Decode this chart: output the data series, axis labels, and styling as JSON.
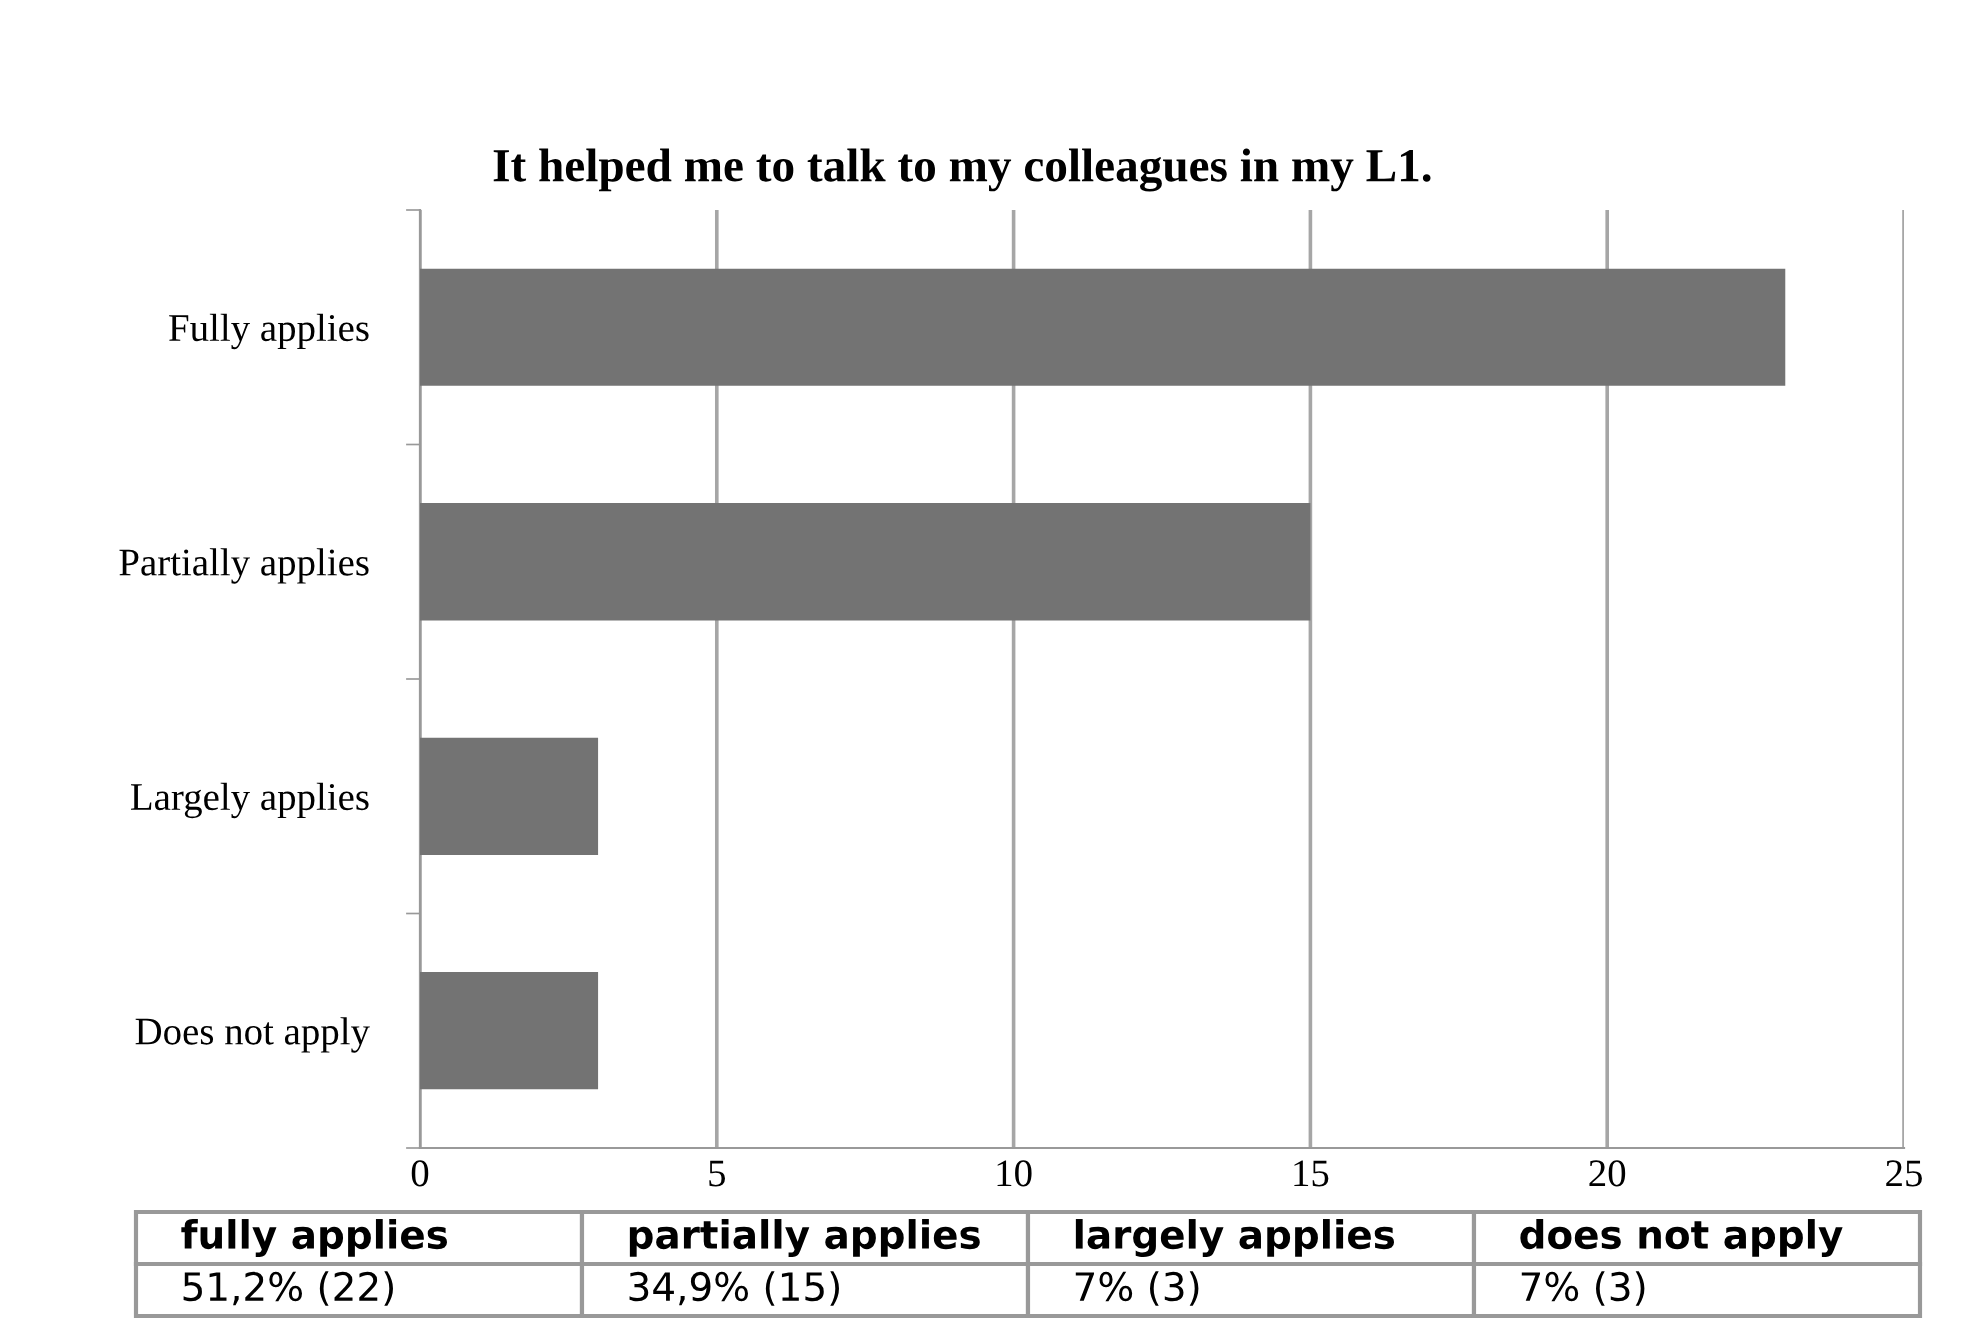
{
  "chart_data": {
    "type": "bar",
    "orientation": "horizontal",
    "title": "It helped me to talk to my colleagues in my L1.",
    "categories": [
      "Fully applies",
      "Partially applies",
      "Largely applies",
      "Does not apply"
    ],
    "values": [
      23,
      15,
      3,
      3
    ],
    "color": "#737373",
    "xlim": [
      0,
      25
    ],
    "xticks": [
      0,
      5,
      10,
      15,
      20,
      25
    ],
    "grid": "x",
    "annotations": [
      "fully applies",
      "partially applies",
      "largely applies",
      "does not apply",
      "51,2% (22)",
      "34,9% (15)",
      "7% (3)",
      "7% (3)"
    ]
  }
}
